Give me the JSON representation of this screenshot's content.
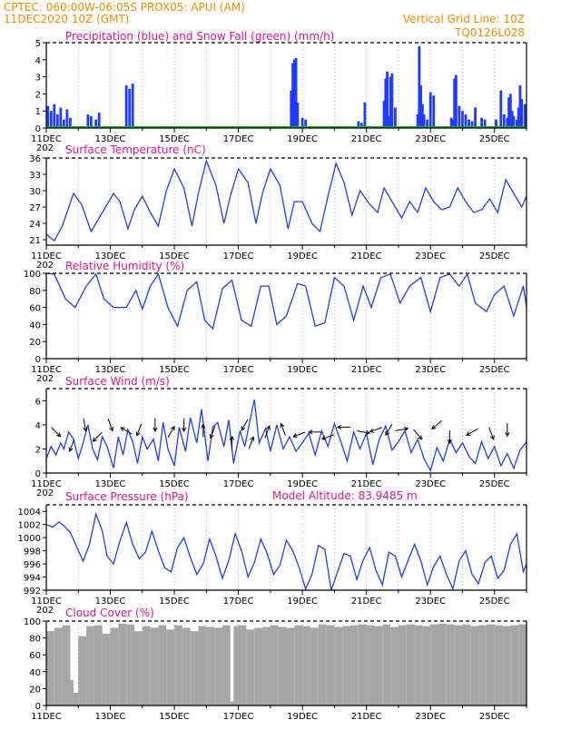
{
  "header": {
    "line1": "CPTEC:   060:00W-06:05S   PROX05: APUI (AM)",
    "date_line": "11DEC2020 10Z (GMT)",
    "grid_note": "Vertical Grid Line: 10Z",
    "code": "TQ0126L028",
    "model_altitude": "Model Altitude: 83.9485 m",
    "cut_year": "202"
  },
  "colors": {
    "header": "#f08c00",
    "title": "#e0148c",
    "precip": "#1f3cff",
    "snow": "#00b400",
    "line": "#2040e0",
    "cloud": "#a6a6a6",
    "arrow": "#000000"
  },
  "x_axis": {
    "days_start": 11,
    "days_end": 26,
    "tick_labels": [
      "11DEC",
      "13DEC",
      "15DEC",
      "17DEC",
      "19DEC",
      "21DEC",
      "23DEC",
      "25DEC"
    ]
  },
  "chart_data": [
    {
      "type": "bar",
      "title": "Precipitation (blue) and Snow Fall (green) (mm/h)",
      "ylim": [
        0,
        5
      ],
      "yticks": [
        "0",
        "1",
        "2",
        "3",
        "4",
        "5"
      ],
      "x": [
        11.05,
        11.15,
        11.25,
        11.35,
        11.45,
        11.55,
        11.65,
        11.75,
        12.3,
        12.4,
        12.55,
        12.65,
        13.5,
        13.6,
        13.7,
        18.65,
        18.7,
        18.75,
        18.8,
        18.85,
        19.0,
        19.1,
        20.75,
        20.85,
        20.95,
        21.55,
        21.6,
        21.65,
        21.7,
        21.75,
        21.8,
        21.9,
        22.6,
        22.65,
        22.7,
        22.75,
        22.8,
        22.9,
        23.0,
        23.1,
        23.65,
        23.7,
        23.75,
        23.8,
        23.9,
        24.0,
        24.1,
        24.2,
        24.3,
        24.4,
        24.6,
        24.7,
        25.05,
        25.2,
        25.3,
        25.4,
        25.45,
        25.5,
        25.55,
        25.6,
        25.7,
        25.75,
        25.8,
        25.85,
        25.95
      ],
      "series": [
        {
          "values": [
            1.3,
            1.0,
            1.4,
            0.8,
            1.2,
            0.5,
            1.1,
            0.6,
            0.8,
            0.7,
            0.5,
            0.9,
            2.5,
            2.3,
            2.6,
            2.2,
            3.8,
            4.0,
            4.1,
            1.5,
            0.6,
            0.5,
            0.4,
            0.3,
            1.5,
            1.6,
            2.9,
            3.3,
            0.7,
            3.0,
            3.2,
            1.2,
            0.8,
            4.8,
            2.5,
            1.4,
            0.8,
            0.5,
            2.1,
            1.9,
            0.6,
            0.5,
            2.9,
            3.1,
            1.3,
            1.0,
            0.8,
            0.5,
            0.4,
            1.2,
            0.6,
            0.5,
            0.5,
            2.2,
            0.8,
            0.6,
            1.8,
            2.0,
            1.0,
            0.7,
            0.5,
            1.2,
            2.5,
            1.7,
            1.4
          ]
        },
        {
          "values": [
            0,
            0,
            0,
            0,
            0,
            0,
            0,
            0,
            0,
            0,
            0,
            0,
            0,
            0,
            0,
            0,
            0,
            0,
            0,
            0,
            0,
            0,
            0,
            0,
            0,
            0,
            0,
            0,
            0,
            0,
            0,
            0,
            0,
            0,
            0,
            0,
            0,
            0,
            0,
            0,
            0,
            0,
            0,
            0,
            0,
            0,
            0,
            0,
            0,
            0,
            0,
            0,
            0,
            0,
            0,
            0,
            0,
            0,
            0,
            0,
            0,
            0,
            0,
            0,
            0
          ]
        }
      ]
    },
    {
      "type": "line",
      "title": "Surface Temperature (nC)",
      "ylim": [
        20,
        36
      ],
      "yticks": [
        "21",
        "24",
        "27",
        "30",
        "33",
        "36"
      ],
      "x": [
        11.0,
        11.25,
        11.5,
        11.85,
        12.1,
        12.4,
        12.8,
        13.1,
        13.3,
        13.55,
        13.75,
        14.0,
        14.25,
        14.5,
        14.75,
        15.0,
        15.3,
        15.55,
        15.75,
        16.0,
        16.3,
        16.55,
        16.75,
        17.0,
        17.3,
        17.55,
        17.75,
        18.0,
        18.3,
        18.55,
        18.75,
        19.0,
        19.3,
        19.55,
        19.8,
        20.05,
        20.3,
        20.55,
        20.8,
        21.1,
        21.35,
        21.55,
        21.8,
        22.1,
        22.35,
        22.6,
        22.85,
        23.1,
        23.35,
        23.6,
        23.85,
        24.1,
        24.35,
        24.6,
        24.85,
        25.1,
        25.35,
        25.6,
        25.85,
        26.0
      ],
      "series": [
        {
          "values": [
            22.0,
            20.8,
            23.5,
            29.5,
            27.5,
            22.5,
            26.5,
            29.5,
            28.0,
            23.0,
            26.5,
            29.0,
            26.0,
            23.5,
            30.0,
            34.0,
            30.5,
            23.5,
            29.5,
            35.5,
            31.0,
            24.0,
            29.0,
            34.0,
            31.5,
            24.0,
            29.5,
            34.0,
            31.0,
            23.0,
            28.0,
            28.0,
            24.0,
            22.5,
            29.0,
            35.0,
            31.5,
            25.5,
            30.0,
            27.5,
            26.0,
            30.5,
            28.0,
            25.0,
            28.0,
            26.0,
            30.5,
            28.0,
            26.5,
            27.0,
            30.5,
            28.0,
            26.0,
            26.5,
            28.5,
            26.0,
            32.0,
            29.5,
            27.0,
            29.0
          ]
        }
      ]
    },
    {
      "type": "line",
      "title": "Relative Humidity (%)",
      "ylim": [
        0,
        100
      ],
      "yticks": [
        "0",
        "20",
        "40",
        "60",
        "80",
        "100"
      ],
      "x": [
        11.0,
        11.25,
        11.6,
        11.9,
        12.25,
        12.55,
        12.8,
        13.1,
        13.5,
        13.8,
        14.0,
        14.25,
        14.5,
        14.8,
        15.1,
        15.4,
        15.7,
        15.95,
        16.2,
        16.5,
        16.8,
        17.1,
        17.4,
        17.7,
        17.95,
        18.2,
        18.5,
        18.85,
        19.1,
        19.4,
        19.7,
        20.0,
        20.3,
        20.6,
        20.9,
        21.15,
        21.45,
        21.75,
        22.05,
        22.35,
        22.7,
        23.0,
        23.3,
        23.6,
        23.9,
        24.15,
        24.4,
        24.75,
        25.0,
        25.3,
        25.6,
        25.9,
        26.0
      ],
      "series": [
        {
          "values": [
            100.0,
            99.0,
            70.0,
            60.0,
            85.0,
            99.0,
            70.0,
            60.0,
            60.0,
            80.0,
            58.0,
            85.0,
            99.0,
            60.0,
            38.0,
            80.0,
            90.0,
            45.0,
            35.0,
            82.0,
            92.0,
            45.0,
            38.0,
            85.0,
            85.0,
            40.0,
            50.0,
            88.0,
            85.0,
            38.0,
            42.0,
            95.0,
            85.0,
            45.0,
            85.0,
            60.0,
            95.0,
            99.0,
            65.0,
            85.0,
            95.0,
            55.0,
            95.0,
            99.0,
            85.0,
            99.0,
            65.0,
            55.0,
            75.0,
            85.0,
            50.0,
            85.0,
            60.0
          ]
        }
      ]
    },
    {
      "type": "line",
      "title": "Surface Wind (m/s)",
      "ylim": [
        0,
        7
      ],
      "yticks": [
        "0",
        "2",
        "4",
        "6"
      ],
      "x": [
        11.0,
        11.15,
        11.3,
        11.45,
        11.55,
        11.7,
        11.85,
        12.0,
        12.15,
        12.3,
        12.45,
        12.6,
        12.75,
        12.9,
        13.1,
        13.25,
        13.4,
        13.55,
        13.7,
        13.85,
        14.0,
        14.15,
        14.35,
        14.5,
        14.65,
        14.8,
        15.0,
        15.15,
        15.35,
        15.5,
        15.7,
        15.85,
        16.05,
        16.2,
        16.35,
        16.55,
        16.7,
        16.85,
        17.05,
        17.2,
        17.35,
        17.5,
        17.65,
        17.85,
        18.0,
        18.2,
        18.4,
        18.6,
        18.8,
        19.0,
        19.2,
        19.4,
        19.6,
        19.8,
        20.0,
        20.2,
        20.4,
        20.6,
        20.8,
        21.0,
        21.2,
        21.4,
        21.6,
        21.8,
        22.0,
        22.2,
        22.4,
        22.6,
        22.8,
        23.0,
        23.2,
        23.4,
        23.6,
        23.8,
        24.0,
        24.2,
        24.4,
        24.6,
        24.8,
        25.0,
        25.2,
        25.4,
        25.6,
        25.8,
        26.0
      ],
      "series": [
        {
          "values": [
            1.2,
            2.2,
            1.5,
            2.5,
            2.0,
            3.4,
            2.8,
            1.2,
            2.5,
            4.0,
            2.0,
            1.1,
            3.0,
            2.2,
            0.4,
            3.0,
            1.5,
            3.6,
            2.6,
            0.8,
            3.0,
            2.0,
            2.8,
            1.0,
            4.2,
            2.0,
            0.6,
            3.8,
            1.8,
            4.6,
            2.5,
            5.3,
            1.0,
            3.8,
            4.2,
            2.2,
            4.4,
            0.8,
            3.5,
            2.2,
            4.2,
            6.1,
            2.5,
            3.7,
            1.8,
            4.0,
            2.0,
            3.0,
            1.8,
            2.5,
            3.3,
            1.5,
            3.5,
            2.2,
            4.1,
            2.6,
            1.0,
            3.4,
            2.0,
            3.3,
            0.7,
            2.8,
            3.9,
            1.9,
            2.6,
            3.5,
            1.7,
            2.8,
            1.2,
            0.2,
            2.1,
            1.0,
            2.8,
            1.7,
            2.5,
            1.4,
            0.8,
            2.6,
            1.2,
            2.2,
            0.6,
            1.6,
            0.4,
            1.9,
            2.6
          ]
        }
      ],
      "arrows": [
        {
          "day": 11.3,
          "speed": 3.4,
          "dir_deg": 135
        },
        {
          "day": 11.8,
          "speed": 2.3,
          "dir_deg": 200
        },
        {
          "day": 12.2,
          "speed": 4.0,
          "dir_deg": 170
        },
        {
          "day": 12.6,
          "speed": 3.0,
          "dir_deg": 225
        },
        {
          "day": 13.0,
          "speed": 4.0,
          "dir_deg": 160
        },
        {
          "day": 13.5,
          "speed": 3.5,
          "dir_deg": 300
        },
        {
          "day": 13.9,
          "speed": 3.6,
          "dir_deg": 200
        },
        {
          "day": 14.4,
          "speed": 4.0,
          "dir_deg": 180
        },
        {
          "day": 14.9,
          "speed": 3.4,
          "dir_deg": 30
        },
        {
          "day": 15.3,
          "speed": 4.0,
          "dir_deg": 180
        },
        {
          "day": 15.9,
          "speed": 3.5,
          "dir_deg": 0
        },
        {
          "day": 16.2,
          "speed": 3.4,
          "dir_deg": 200
        },
        {
          "day": 16.8,
          "speed": 2.5,
          "dir_deg": 0
        },
        {
          "day": 17.2,
          "speed": 4.0,
          "dir_deg": 210
        },
        {
          "day": 17.4,
          "speed": 2.5,
          "dir_deg": 20
        },
        {
          "day": 17.9,
          "speed": 3.4,
          "dir_deg": 20
        },
        {
          "day": 18.4,
          "speed": 3.6,
          "dir_deg": 340
        },
        {
          "day": 18.9,
          "speed": 3.2,
          "dir_deg": 250
        },
        {
          "day": 19.4,
          "speed": 3.4,
          "dir_deg": 270
        },
        {
          "day": 19.8,
          "speed": 3.0,
          "dir_deg": 250
        },
        {
          "day": 20.3,
          "speed": 3.8,
          "dir_deg": 270
        },
        {
          "day": 20.9,
          "speed": 3.4,
          "dir_deg": 100
        },
        {
          "day": 21.3,
          "speed": 3.6,
          "dir_deg": 250
        },
        {
          "day": 21.7,
          "speed": 3.6,
          "dir_deg": 210
        },
        {
          "day": 22.1,
          "speed": 3.6,
          "dir_deg": 80
        },
        {
          "day": 22.6,
          "speed": 3.2,
          "dir_deg": 140
        },
        {
          "day": 23.2,
          "speed": 4.0,
          "dir_deg": 230
        },
        {
          "day": 23.6,
          "speed": 3.0,
          "dir_deg": 180
        },
        {
          "day": 24.3,
          "speed": 3.4,
          "dir_deg": 240
        },
        {
          "day": 24.9,
          "speed": 3.3,
          "dir_deg": 160
        },
        {
          "day": 25.4,
          "speed": 3.6,
          "dir_deg": 180
        }
      ]
    },
    {
      "type": "line",
      "title": "Surface Pressure (hPa)",
      "ylim": [
        992,
        1005
      ],
      "yticks": [
        "992",
        "994",
        "996",
        "998",
        "1000",
        "1002",
        "1004"
      ],
      "x": [
        11.0,
        11.2,
        11.4,
        11.55,
        11.75,
        11.95,
        12.15,
        12.35,
        12.55,
        12.75,
        12.9,
        13.1,
        13.3,
        13.5,
        13.7,
        13.9,
        14.1,
        14.3,
        14.5,
        14.7,
        14.9,
        15.1,
        15.3,
        15.5,
        15.7,
        15.9,
        16.1,
        16.3,
        16.5,
        16.7,
        16.9,
        17.1,
        17.3,
        17.5,
        17.7,
        17.9,
        18.1,
        18.3,
        18.5,
        18.7,
        18.9,
        19.1,
        19.3,
        19.5,
        19.7,
        19.9,
        20.1,
        20.3,
        20.5,
        20.7,
        20.9,
        21.1,
        21.3,
        21.5,
        21.7,
        21.9,
        22.1,
        22.3,
        22.5,
        22.7,
        22.9,
        23.1,
        23.3,
        23.5,
        23.7,
        23.9,
        24.1,
        24.3,
        24.5,
        24.7,
        24.9,
        25.1,
        25.3,
        25.5,
        25.7,
        25.9,
        26.0
      ],
      "series": [
        {
          "values": [
            1002.0,
            1001.6,
            1002.4,
            1001.8,
            1000.8,
            998.6,
            996.4,
            999.0,
            1003.6,
            1001.0,
            997.2,
            996.0,
            999.5,
            1002.3,
            999.0,
            996.8,
            997.8,
            1001.0,
            998.0,
            995.4,
            994.8,
            998.5,
            1000.0,
            997.0,
            994.4,
            996.0,
            999.8,
            997.2,
            993.8,
            996.5,
            1000.6,
            998.0,
            994.0,
            996.2,
            999.8,
            997.6,
            994.4,
            995.8,
            999.6,
            998.0,
            995.4,
            992.2,
            994.4,
            998.8,
            998.2,
            992.0,
            994.8,
            997.6,
            997.2,
            993.6,
            996.6,
            998.5,
            995.0,
            992.8,
            997.8,
            997.2,
            994.0,
            996.5,
            999.0,
            996.5,
            992.8,
            995.6,
            997.2,
            994.4,
            992.2,
            996.5,
            998.0,
            994.4,
            993.0,
            996.2,
            997.2,
            993.8,
            995.0,
            999.0,
            1000.6,
            994.8,
            996.0
          ]
        }
      ]
    },
    {
      "type": "bar",
      "title": "Cloud Cover (%)",
      "ylim": [
        0,
        100
      ],
      "yticks": [
        "0",
        "20",
        "40",
        "60",
        "80",
        "100"
      ],
      "x": [
        11.0,
        11.25,
        11.5,
        11.75,
        11.85,
        12.0,
        12.25,
        12.5,
        12.75,
        13.0,
        13.25,
        13.5,
        13.75,
        14.0,
        14.25,
        14.5,
        14.75,
        15.0,
        15.25,
        15.5,
        15.75,
        16.0,
        16.25,
        16.5,
        16.75,
        16.85,
        17.0,
        17.25,
        17.5,
        17.75,
        18.0,
        18.25,
        18.5,
        18.75,
        19.0,
        19.25,
        19.5,
        19.75,
        20.0,
        20.25,
        20.5,
        20.75,
        21.0,
        21.25,
        21.5,
        21.75,
        22.0,
        22.25,
        22.5,
        22.75,
        23.0,
        23.25,
        23.5,
        23.75,
        24.0,
        24.25,
        24.5,
        24.75,
        25.0,
        25.25,
        25.5,
        25.75,
        26.0
      ],
      "series": [
        {
          "values": [
            88,
            92,
            95,
            30,
            15,
            82,
            94,
            95,
            85,
            92,
            97,
            96,
            88,
            94,
            92,
            95,
            90,
            95,
            92,
            88,
            94,
            93,
            92,
            95,
            5,
            94,
            95,
            90,
            92,
            93,
            95,
            93,
            92,
            95,
            94,
            92,
            96,
            95,
            93,
            94,
            95,
            96,
            95,
            94,
            96,
            93,
            95,
            96,
            95,
            94,
            96,
            97,
            96,
            95,
            96,
            94,
            95,
            96,
            95,
            94,
            95,
            96,
            95
          ]
        }
      ]
    }
  ]
}
